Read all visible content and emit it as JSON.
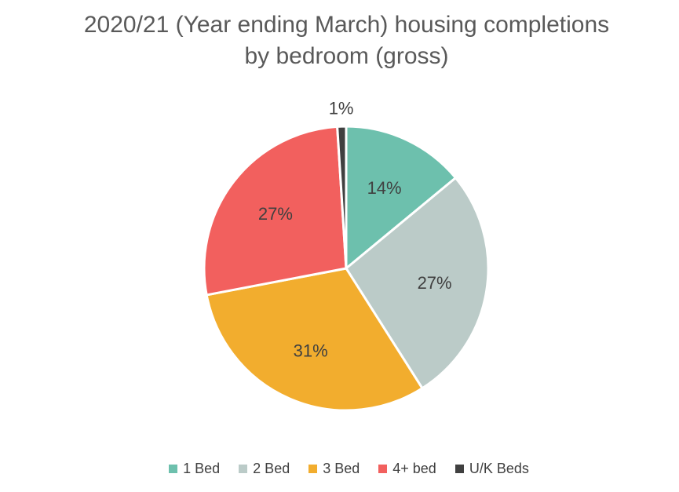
{
  "title": {
    "line1": "2020/21 (Year ending March) housing completions",
    "line2": "by bedroom (gross)"
  },
  "chart_data": {
    "type": "pie",
    "title": "2020/21 (Year ending March) housing completions by bedroom (gross)",
    "categories": [
      "1 Bed",
      "2 Bed",
      "3 Bed",
      "4+ bed",
      "U/K Beds"
    ],
    "values": [
      14,
      27,
      31,
      27,
      1
    ],
    "value_unit": "percent",
    "slice_labels": [
      "14%",
      "27%",
      "31%",
      "27%",
      "1%"
    ],
    "colors": [
      "#6DC0AD",
      "#BBCBC8",
      "#F2AD2E",
      "#F2605E",
      "#404040"
    ],
    "start_angle_deg": 0,
    "direction": "clockwise",
    "legend_position": "bottom",
    "grid": false
  },
  "styles": {
    "title_color": "#595959",
    "label_color": "#404040",
    "legend_text_color": "#404040",
    "slice_border_color": "#ffffff",
    "background_color": "#ffffff"
  }
}
